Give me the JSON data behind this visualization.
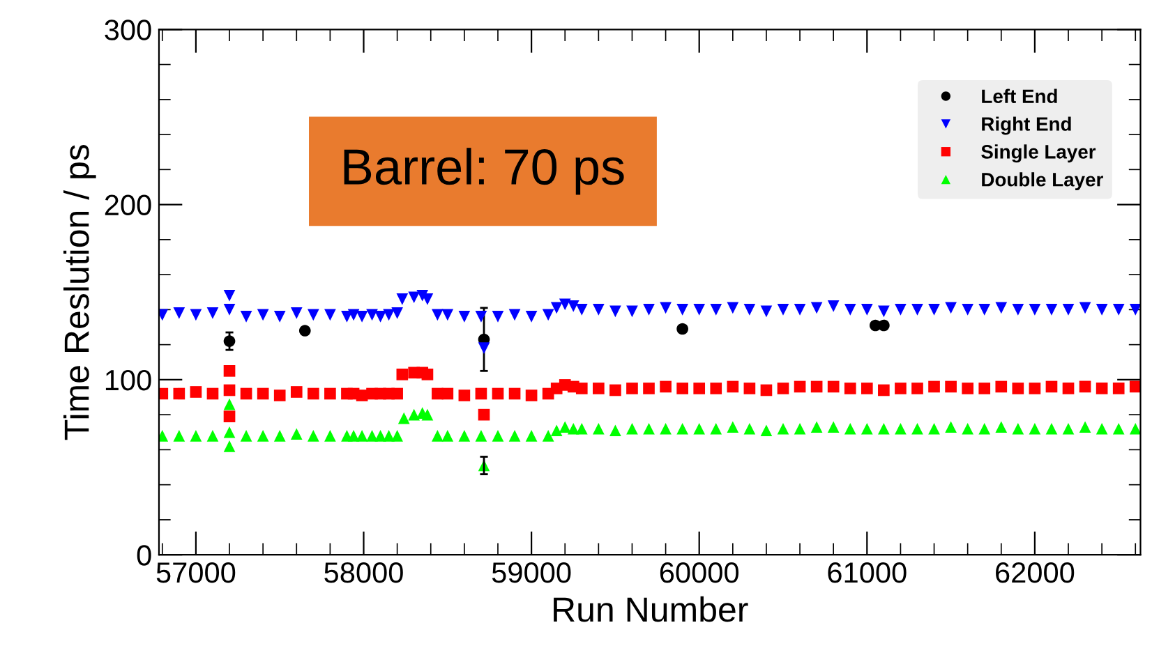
{
  "chart_data": {
    "type": "scatter",
    "xlabel": "Run Number",
    "ylabel": "Time Reslution / ps",
    "xlim": [
      56780,
      62630
    ],
    "xticks": [
      57000,
      58000,
      59000,
      60000,
      61000,
      62000
    ],
    "ylim": [
      0,
      300
    ],
    "yticks": [
      0,
      100,
      200,
      300
    ],
    "grid": false,
    "legend": "top right",
    "annotations": [
      "Barrel: 70 ps"
    ],
    "series": [
      {
        "name": "Left End",
        "color": "#000000",
        "marker": "circle",
        "x": [
          57200,
          57650,
          58717,
          59900,
          61050,
          61100
        ],
        "values": [
          122,
          128,
          123,
          129,
          131,
          131
        ],
        "errors": [
          5,
          null,
          18,
          null,
          null,
          null
        ]
      },
      {
        "name": "Right End",
        "color": "#0000ff",
        "marker": "triangle_down",
        "x": [
          56800,
          56900,
          57000,
          57100,
          57200,
          57300,
          57400,
          57500,
          57600,
          57700,
          57800,
          57900,
          57940,
          57965,
          57990,
          58050,
          58100,
          58150,
          58200,
          58230,
          58300,
          58350,
          58380,
          58410,
          58440,
          58500,
          58600,
          58700,
          58800,
          58900,
          59000,
          59100,
          59150,
          59200,
          59250,
          59300,
          59400,
          59500,
          59600,
          59700,
          59800,
          59900,
          60000,
          60100,
          60200,
          60300,
          60400,
          60500,
          60600,
          60700,
          60800,
          60900,
          61000,
          61100,
          61200,
          61300,
          61400,
          61500,
          61600,
          61700,
          61800,
          61900,
          62000,
          62100,
          62200,
          62300,
          62400,
          62500,
          62600,
          57200,
          58717
        ],
        "values": [
          137,
          138,
          137,
          138,
          140,
          136,
          137,
          136,
          138,
          137,
          137,
          136,
          137,
          null,
          136,
          137,
          136,
          137,
          138,
          146,
          147,
          148,
          146,
          null,
          137,
          137,
          136,
          136,
          136,
          137,
          136,
          137,
          141,
          143,
          142,
          140,
          140,
          139,
          139,
          140,
          141,
          140,
          140,
          140,
          141,
          140,
          139,
          140,
          140,
          141,
          142,
          140,
          140,
          139,
          140,
          140,
          140,
          141,
          140,
          140,
          141,
          140,
          140,
          140,
          140,
          141,
          140,
          140,
          140,
          148,
          118
        ]
      },
      {
        "name": "Single Layer",
        "color": "#ff0000",
        "marker": "square",
        "x": [
          56800,
          56900,
          57000,
          57100,
          57200,
          57300,
          57400,
          57500,
          57600,
          57700,
          57800,
          57900,
          57940,
          57965,
          57990,
          58050,
          58100,
          58150,
          58200,
          58230,
          58300,
          58350,
          58380,
          58410,
          58440,
          58500,
          58600,
          58700,
          58800,
          58900,
          59000,
          59100,
          59150,
          59200,
          59250,
          59300,
          59400,
          59500,
          59600,
          59700,
          59800,
          59900,
          60000,
          60100,
          60200,
          60300,
          60400,
          60500,
          60600,
          60700,
          60800,
          60900,
          61000,
          61100,
          61200,
          61300,
          61400,
          61500,
          61600,
          61700,
          61800,
          61900,
          62000,
          62100,
          62200,
          62300,
          62400,
          62500,
          62600,
          57200,
          57200,
          58717
        ],
        "values": [
          92,
          92,
          93,
          92,
          94,
          92,
          92,
          91,
          93,
          92,
          92,
          92,
          92,
          null,
          91,
          92,
          92,
          92,
          92,
          103,
          104,
          104,
          103,
          null,
          92,
          92,
          91,
          92,
          92,
          92,
          91,
          92,
          95,
          97,
          96,
          95,
          95,
          94,
          95,
          95,
          96,
          95,
          95,
          95,
          96,
          95,
          94,
          95,
          96,
          96,
          96,
          95,
          95,
          94,
          95,
          95,
          96,
          96,
          95,
          95,
          96,
          95,
          95,
          96,
          95,
          96,
          95,
          95,
          96,
          105,
          79,
          80
        ]
      },
      {
        "name": "Double Layer",
        "color": "#00ff00",
        "marker": "triangle_up",
        "x": [
          56800,
          56900,
          57000,
          57100,
          57200,
          57300,
          57400,
          57500,
          57600,
          57700,
          57800,
          57900,
          57940,
          57965,
          57990,
          58050,
          58100,
          58150,
          58200,
          58240,
          58300,
          58350,
          58380,
          58410,
          58440,
          58500,
          58600,
          58700,
          58800,
          58900,
          59000,
          59100,
          59150,
          59200,
          59250,
          59300,
          59400,
          59500,
          59600,
          59700,
          59800,
          59900,
          60000,
          60100,
          60200,
          60300,
          60400,
          60500,
          60600,
          60700,
          60800,
          60900,
          61000,
          61100,
          61200,
          61300,
          61400,
          61500,
          61600,
          61700,
          61800,
          61900,
          62000,
          62100,
          62200,
          62300,
          62400,
          62500,
          62600,
          57200,
          57200,
          58717
        ],
        "values": [
          68,
          68,
          68,
          68,
          70,
          68,
          68,
          68,
          69,
          68,
          68,
          68,
          68,
          null,
          68,
          68,
          68,
          68,
          68,
          78,
          80,
          81,
          80,
          null,
          68,
          68,
          68,
          68,
          68,
          68,
          68,
          68,
          71,
          73,
          72,
          72,
          72,
          71,
          72,
          72,
          72,
          72,
          72,
          72,
          73,
          72,
          71,
          72,
          72,
          73,
          73,
          72,
          72,
          72,
          72,
          72,
          72,
          73,
          72,
          72,
          73,
          72,
          72,
          72,
          72,
          73,
          72,
          72,
          72,
          86,
          62,
          51
        ],
        "errors": [
          null,
          null,
          null,
          null,
          null,
          null,
          null,
          null,
          null,
          null,
          null,
          null,
          null,
          null,
          null,
          null,
          null,
          null,
          null,
          null,
          null,
          null,
          null,
          null,
          null,
          null,
          null,
          null,
          null,
          null,
          null,
          null,
          null,
          null,
          null,
          null,
          null,
          null,
          null,
          null,
          null,
          null,
          null,
          null,
          null,
          null,
          null,
          null,
          null,
          null,
          null,
          null,
          null,
          null,
          null,
          null,
          null,
          null,
          null,
          null,
          null,
          null,
          null,
          null,
          null,
          null,
          null,
          null,
          null,
          null,
          null,
          5
        ]
      }
    ]
  }
}
